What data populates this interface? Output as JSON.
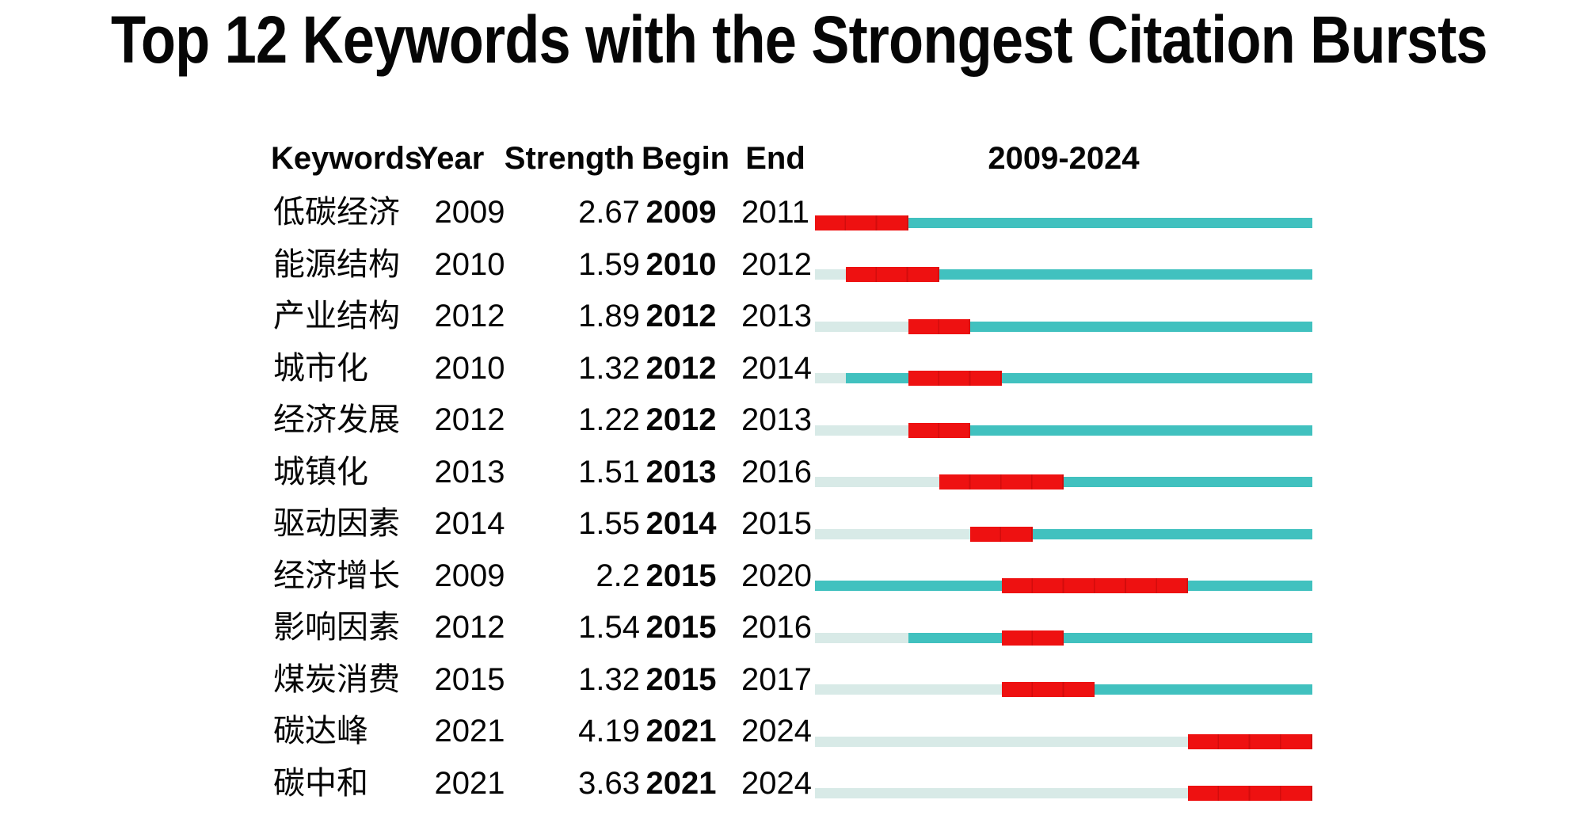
{
  "chart_data": {
    "type": "burst_timeline_table",
    "title": "Top 12 Keywords with the Strongest Citation Bursts",
    "columns": {
      "keywords": "Keywords",
      "year": "Year",
      "strength": "Strength",
      "begin": "Begin",
      "end": "End",
      "timeline": "2009-2024"
    },
    "timeline_start": 2009,
    "timeline_end": 2024,
    "rows": [
      {
        "keyword": "低碳经济",
        "year": 2009,
        "strength": "2.67",
        "begin": 2009,
        "end": 2011
      },
      {
        "keyword": "能源结构",
        "year": 2010,
        "strength": "1.59",
        "begin": 2010,
        "end": 2012
      },
      {
        "keyword": "产业结构",
        "year": 2012,
        "strength": "1.89",
        "begin": 2012,
        "end": 2013
      },
      {
        "keyword": "城市化",
        "year": 2010,
        "strength": "1.32",
        "begin": 2012,
        "end": 2014
      },
      {
        "keyword": "经济发展",
        "year": 2012,
        "strength": "1.22",
        "begin": 2012,
        "end": 2013
      },
      {
        "keyword": "城镇化",
        "year": 2013,
        "strength": "1.51",
        "begin": 2013,
        "end": 2016
      },
      {
        "keyword": "驱动因素",
        "year": 2014,
        "strength": "1.55",
        "begin": 2014,
        "end": 2015
      },
      {
        "keyword": "经济增长",
        "year": 2009,
        "strength": "2.2",
        "begin": 2015,
        "end": 2020
      },
      {
        "keyword": "影响因素",
        "year": 2012,
        "strength": "1.54",
        "begin": 2015,
        "end": 2016
      },
      {
        "keyword": "煤炭消费",
        "year": 2015,
        "strength": "1.32",
        "begin": 2015,
        "end": 2017
      },
      {
        "keyword": "碳达峰",
        "year": 2021,
        "strength": "4.19",
        "begin": 2021,
        "end": 2024
      },
      {
        "keyword": "碳中和",
        "year": 2021,
        "strength": "3.63",
        "begin": 2021,
        "end": 2024
      }
    ],
    "colors": {
      "burst": "#EE1111",
      "active_period": "#41C1BF",
      "pre_appearance": "#D8EAE7"
    },
    "legend_note": {
      "burst": "red segment = citation burst period (Begin–End)",
      "active_period": "teal segment = years keyword present outside burst",
      "pre_appearance": "pale segment = years before keyword first appeared"
    }
  }
}
